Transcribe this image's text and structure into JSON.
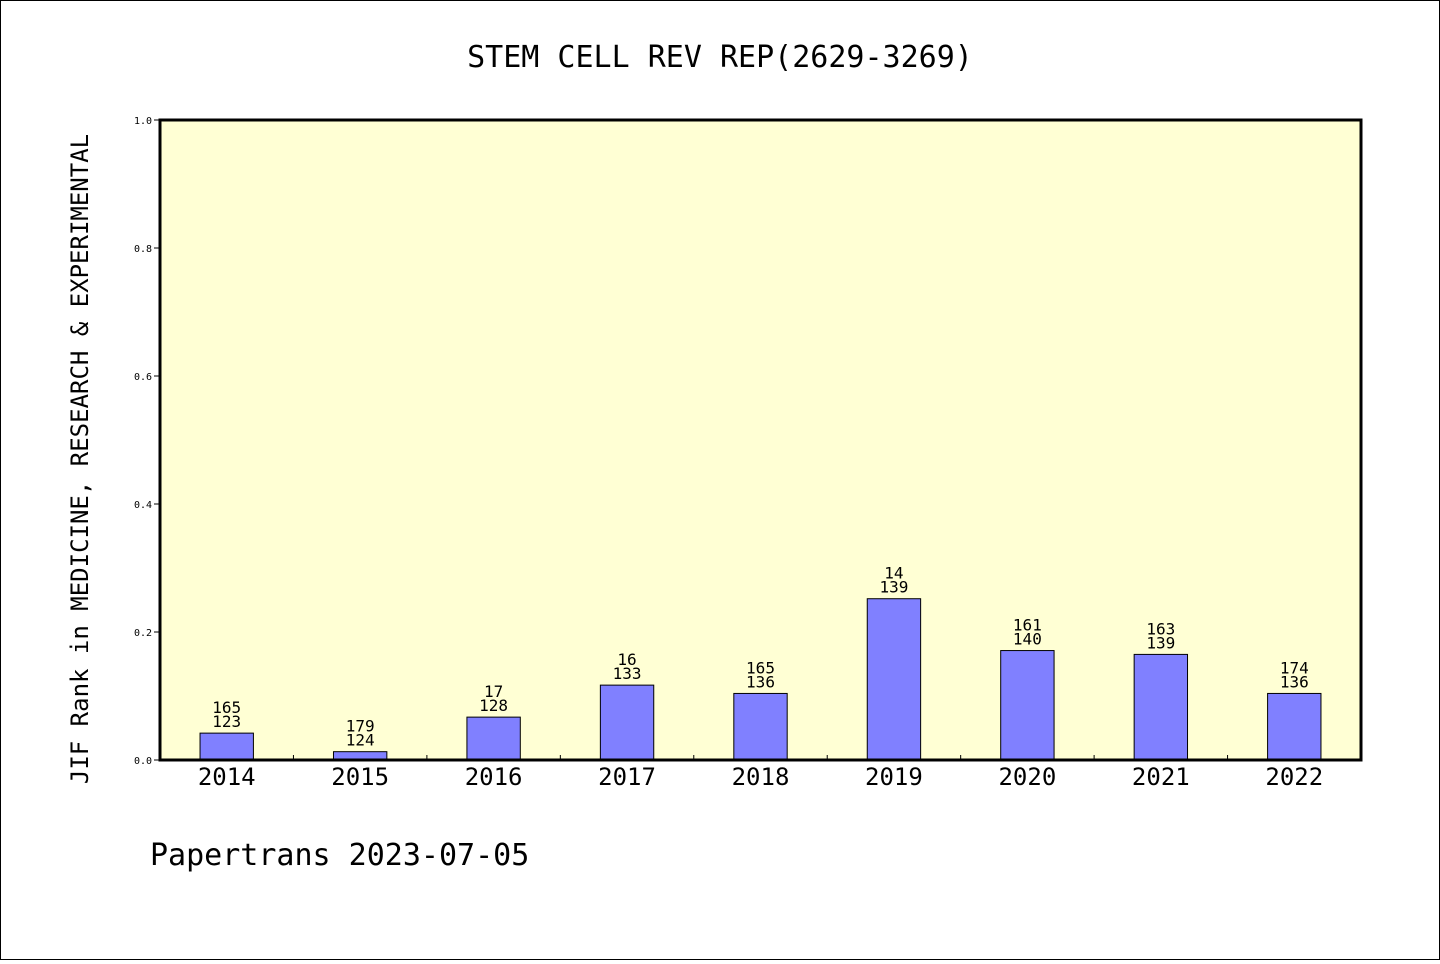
{
  "chart_data": {
    "type": "bar",
    "title": "STEM CELL REV REP(2629-3269)",
    "xlabel": "",
    "ylabel": "JIF Rank in MEDICINE, RESEARCH & EXPERIMENTAL",
    "ylim": [
      0,
      1.0
    ],
    "yticks": [
      "0.0",
      "0.2",
      "0.4",
      "0.6",
      "0.8",
      "1.0"
    ],
    "grid": false,
    "categories": [
      "2014",
      "2015",
      "2016",
      "2017",
      "2018",
      "2019",
      "2020",
      "2021",
      "2022"
    ],
    "values": [
      0.042,
      0.013,
      0.067,
      0.117,
      0.104,
      0.252,
      0.171,
      0.165,
      0.104
    ],
    "labels_top": [
      "165",
      "179",
      "17",
      "16",
      "165",
      "14",
      "161",
      "163",
      "174"
    ],
    "labels_bottom": [
      "123",
      "124",
      "128",
      "133",
      "136",
      "139",
      "140",
      "139",
      "136"
    ],
    "colors": {
      "plot_bg": "#ffffd4",
      "bar": "#8080ff"
    }
  },
  "footer": "Papertrans 2023-07-05"
}
